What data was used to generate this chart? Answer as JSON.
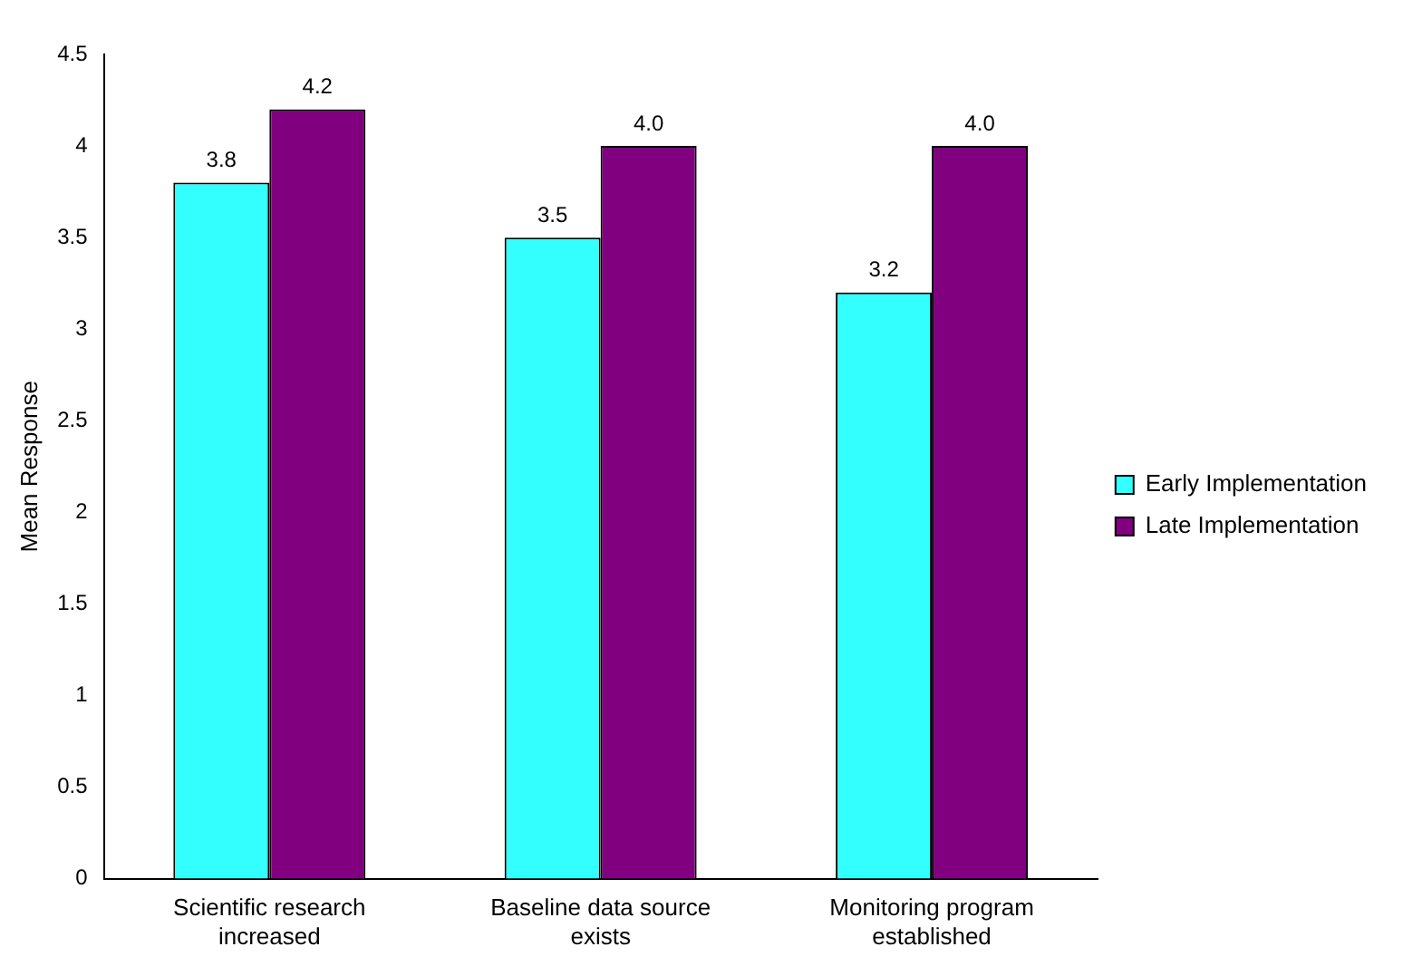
{
  "chart_data": {
    "type": "bar",
    "ylabel": "Mean Response",
    "categories": [
      "Scientific research increased",
      "Baseline data source exists",
      "Monitoring program established"
    ],
    "series": [
      {
        "name": "Early Implementation",
        "color": "#33ffff",
        "values": [
          3.8,
          3.5,
          3.2
        ],
        "value_labels": [
          "3.8",
          "3.5",
          "3.2"
        ]
      },
      {
        "name": "Late Implementation",
        "color": "#800080",
        "values": [
          4.2,
          4.0,
          4.0
        ],
        "value_labels": [
          "4.2",
          "4.0",
          "4.0"
        ]
      }
    ],
    "ylim": [
      0,
      4.5
    ],
    "yticks": [
      0,
      0.5,
      1,
      1.5,
      2,
      2.5,
      3,
      3.5,
      4,
      4.5
    ],
    "grid": false,
    "legend": "right"
  }
}
